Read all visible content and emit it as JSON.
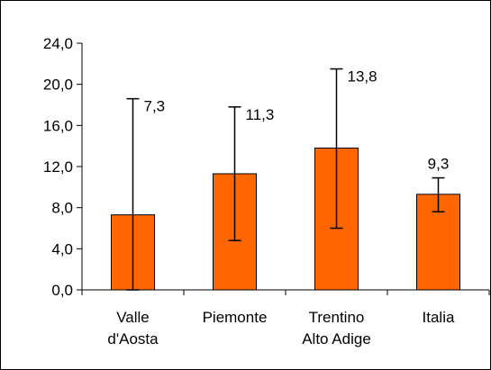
{
  "chart_data": {
    "type": "bar",
    "categories": [
      [
        "Valle",
        "d'Aosta"
      ],
      [
        "Piemonte"
      ],
      [
        "Trentino",
        "Alto Adige"
      ],
      [
        "Italia"
      ]
    ],
    "values": [
      7.3,
      11.3,
      13.8,
      9.3
    ],
    "value_labels": [
      "7,3",
      "11,3",
      "13,8",
      "9,3"
    ],
    "error_bars": [
      {
        "low": 0.0,
        "high": 18.6
      },
      {
        "low": 4.8,
        "high": 17.8
      },
      {
        "low": 6.0,
        "high": 21.5
      },
      {
        "low": 7.6,
        "high": 10.9
      }
    ],
    "ylim": [
      0,
      24
    ],
    "yticks": [
      0,
      4,
      8,
      12,
      16,
      20,
      24
    ],
    "ytick_labels": [
      "0,0",
      "4,0",
      "8,0",
      "12,0",
      "16,0",
      "20,0",
      "24,0"
    ],
    "title": "",
    "xlabel": "",
    "ylabel": "",
    "grid": false,
    "bar_color": "#ff6600",
    "border_color": "#000000"
  }
}
